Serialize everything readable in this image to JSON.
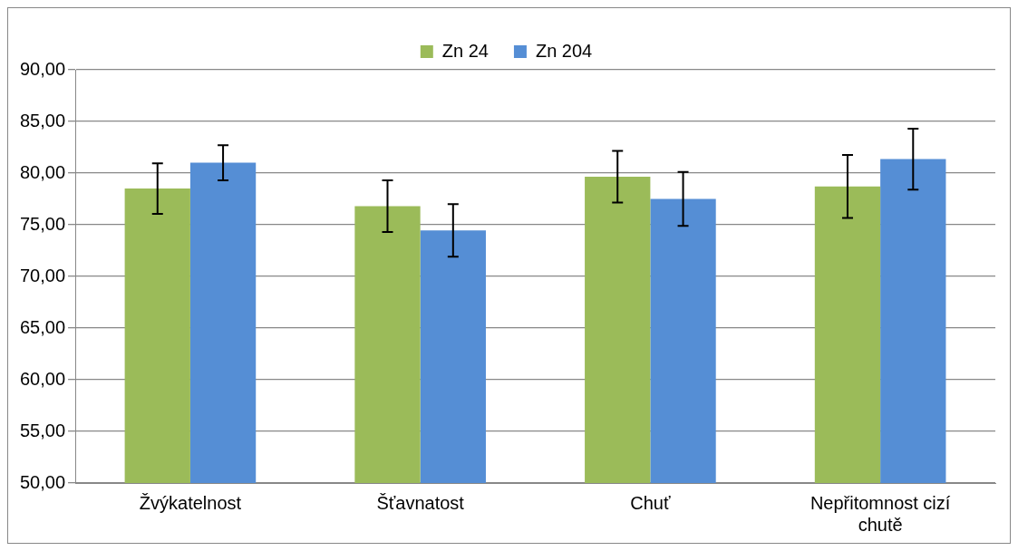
{
  "chart_data": {
    "type": "bar",
    "categories": [
      "Žvýkatelnost",
      "Šťavnatost",
      "Chuť",
      "Nepřitomnost cizí chutě"
    ],
    "series": [
      {
        "name": "Zn 24",
        "color": "#9bbb59",
        "values": [
          78.5,
          76.8,
          79.65,
          78.7
        ],
        "errors": [
          2.45,
          2.5,
          2.5,
          3.05
        ]
      },
      {
        "name": "Zn 204",
        "color": "#558ed5",
        "values": [
          81.0,
          74.45,
          77.5,
          81.35
        ],
        "errors": [
          1.7,
          2.55,
          2.6,
          2.95
        ]
      }
    ],
    "ylim": [
      50,
      90
    ],
    "yticks": [
      {
        "value": 50,
        "label": "50,00"
      },
      {
        "value": 55,
        "label": "55,00"
      },
      {
        "value": 60,
        "label": "60,00"
      },
      {
        "value": 65,
        "label": "65,00"
      },
      {
        "value": 70,
        "label": "70,00"
      },
      {
        "value": 75,
        "label": "75,00"
      },
      {
        "value": 80,
        "label": "80,00"
      },
      {
        "value": 85,
        "label": "85,00"
      },
      {
        "value": 90,
        "label": "90,00"
      }
    ],
    "grid": "y",
    "legend": "top"
  }
}
